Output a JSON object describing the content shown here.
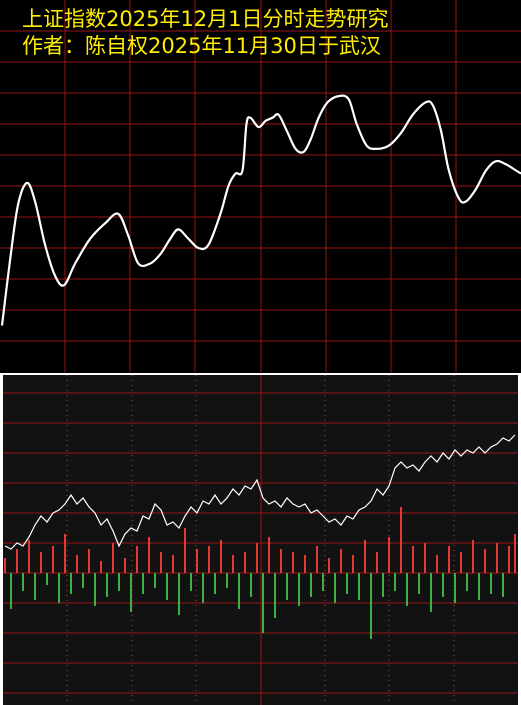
{
  "chart_data": [
    {
      "type": "smooth-line",
      "title": "上证指数2025年12月1日分时走势研究",
      "subtitle": "作者：陈自权2025年11月30日于武汉",
      "color": "#ffffff",
      "grid": true,
      "xlim": [
        0,
        520
      ],
      "ylim": [
        0,
        12
      ],
      "x": [
        2,
        10,
        18,
        27,
        35,
        45,
        55,
        64,
        75,
        90,
        105,
        118,
        128,
        138,
        150,
        160,
        170,
        178,
        188,
        198,
        208,
        220,
        228,
        235,
        242,
        246,
        250,
        258,
        265,
        272,
        278,
        286,
        295,
        303,
        310,
        318,
        327,
        338,
        348,
        356,
        366,
        376,
        388,
        400,
        412,
        425,
        432,
        440,
        448,
        458,
        465,
        475,
        485,
        495,
        505,
        515,
        520
      ],
      "values": [
        1.5,
        3.6,
        5.4,
        6.1,
        5.5,
        4.1,
        3.1,
        2.8,
        3.5,
        4.3,
        4.8,
        5.1,
        4.4,
        3.5,
        3.5,
        3.8,
        4.3,
        4.6,
        4.3,
        4.0,
        4.1,
        5.1,
        6.0,
        6.4,
        6.5,
        8.0,
        8.2,
        7.9,
        8.1,
        8.2,
        8.3,
        7.8,
        7.2,
        7.1,
        7.5,
        8.2,
        8.7,
        8.9,
        8.8,
        8.0,
        7.3,
        7.2,
        7.3,
        7.7,
        8.3,
        8.7,
        8.6,
        7.8,
        6.5,
        5.6,
        5.5,
        5.9,
        6.5,
        6.8,
        6.7,
        6.5,
        6.4
      ]
    },
    {
      "type": "intraday",
      "line_color": "#ffffff",
      "up_color": "#e53935",
      "down_color": "#3cb043",
      "grid": true,
      "ylim": [
        -4.4,
        6.6
      ],
      "line_values": [
        0.9,
        0.8,
        1.0,
        0.9,
        1.2,
        1.6,
        1.9,
        1.7,
        2.0,
        2.1,
        2.3,
        2.6,
        2.3,
        2.5,
        2.2,
        2.0,
        1.6,
        1.8,
        1.4,
        0.9,
        1.3,
        1.5,
        1.4,
        1.9,
        1.8,
        2.3,
        2.1,
        1.6,
        1.7,
        1.5,
        1.9,
        2.2,
        2.0,
        2.4,
        2.3,
        2.6,
        2.3,
        2.5,
        2.8,
        2.6,
        2.9,
        2.8,
        3.1,
        2.5,
        2.3,
        2.4,
        2.2,
        2.5,
        2.3,
        2.2,
        2.3,
        2.0,
        2.1,
        1.9,
        1.7,
        1.8,
        1.6,
        1.9,
        1.8,
        2.1,
        2.2,
        2.4,
        2.8,
        2.6,
        2.9,
        3.5,
        3.7,
        3.5,
        3.6,
        3.4,
        3.7,
        3.9,
        3.7,
        4.0,
        3.8,
        4.1,
        3.9,
        4.1,
        4.0,
        4.2,
        4.0,
        4.2,
        4.3,
        4.5,
        4.4,
        4.6
      ],
      "bar_values": [
        0.5,
        -1.2,
        0.8,
        -0.6,
        1.1,
        -0.9,
        0.7,
        -0.4,
        0.9,
        -1.0,
        1.3,
        -0.7,
        0.6,
        -0.5,
        0.8,
        -1.1,
        0.4,
        -0.8,
        1.0,
        -0.6,
        0.5,
        -1.3,
        0.9,
        -0.7,
        1.2,
        -0.5,
        0.7,
        -0.9,
        0.6,
        -1.4,
        1.5,
        -0.6,
        0.8,
        -1.0,
        0.9,
        -0.7,
        1.1,
        -0.5,
        0.6,
        -1.2,
        0.7,
        -0.8,
        1.0,
        -2.0,
        1.2,
        -1.5,
        0.8,
        -0.9,
        0.7,
        -1.1,
        0.6,
        -0.8,
        0.9,
        -0.6,
        0.5,
        -1.0,
        0.8,
        -0.7,
        0.6,
        -0.9,
        1.1,
        -2.2,
        0.7,
        -0.8,
        1.2,
        -0.6,
        2.2,
        -1.1,
        0.9,
        -0.7,
        1.0,
        -1.3,
        0.6,
        -0.8,
        0.9,
        -1.0,
        0.7,
        -0.6,
        1.1,
        -0.9,
        0.8,
        -0.7,
        1.0,
        -0.8,
        0.9,
        1.3
      ]
    }
  ]
}
